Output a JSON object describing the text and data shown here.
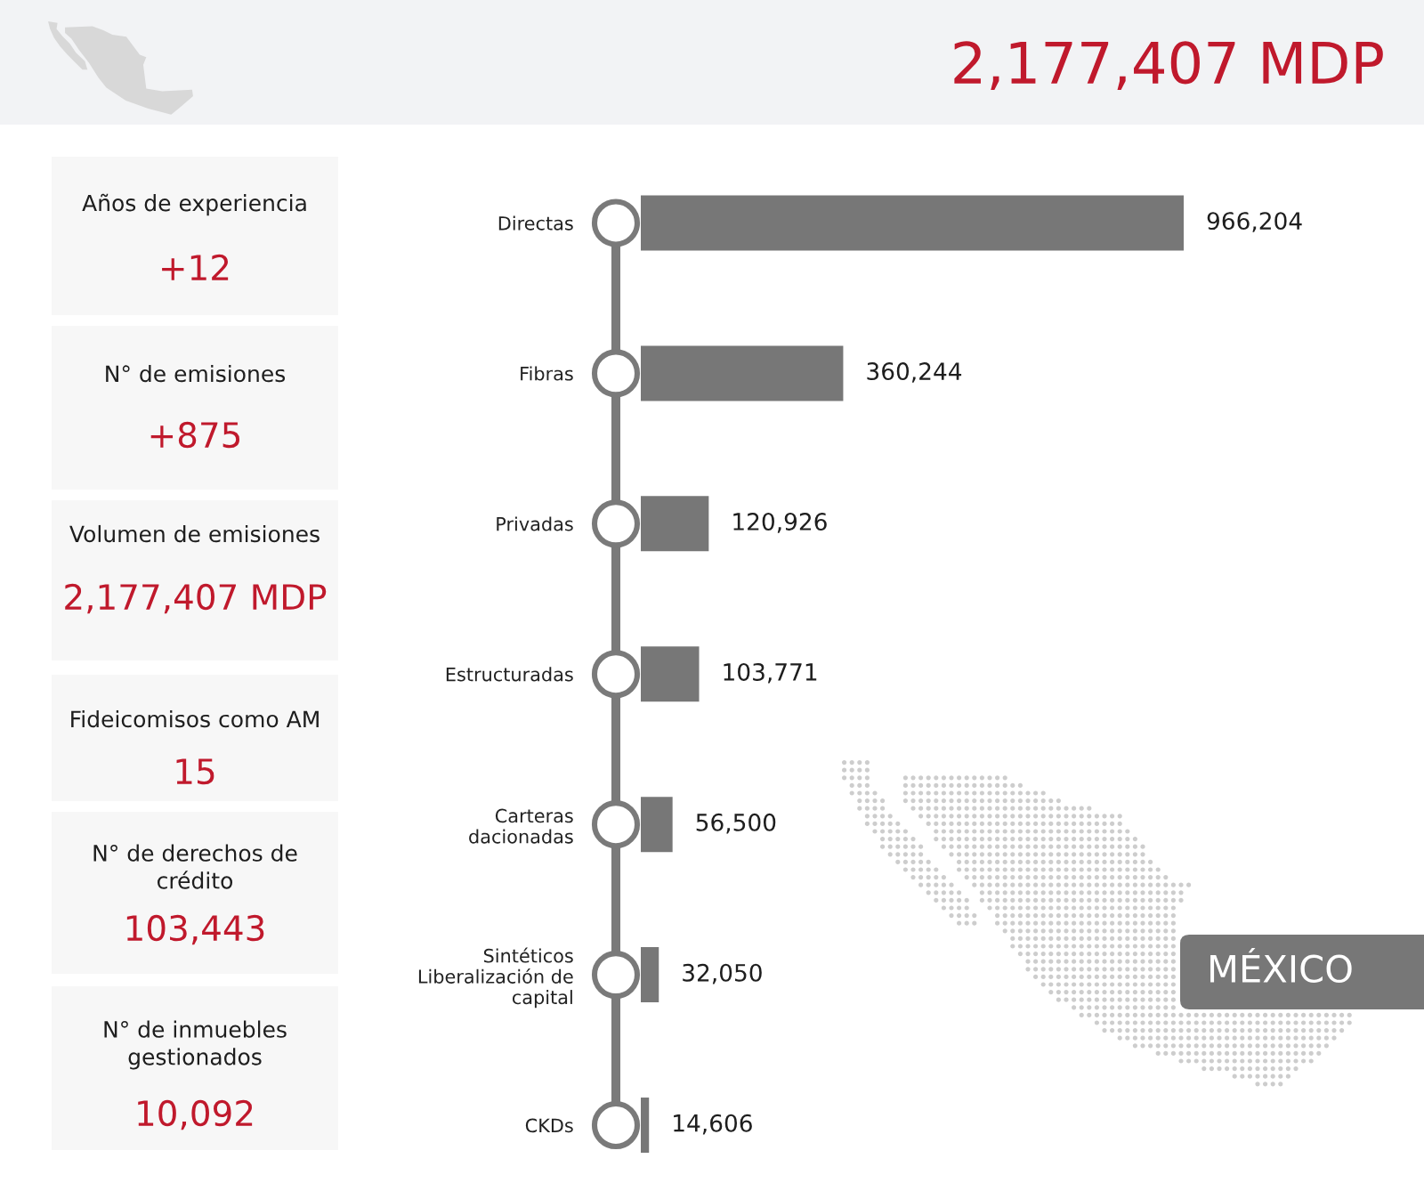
{
  "chart_data": [
    {
      "type": "other",
      "title": "2,177,407 MDP",
      "annotations": [
        "Años de experiencia",
        "+12",
        "N° de emisiones",
        "+875",
        "Volumen de emisiones",
        "2,177,407 MDP",
        "Fideicomisos como AM",
        "15",
        "N° de derechos de\ncrédito",
        "103,443",
        "N° de inmuebles\ngestionados",
        "10,092"
      ]
    },
    {
      "type": "bar",
      "orientation": "horizontal",
      "categories": [
        "Directas",
        "Fibras",
        "Privadas",
        "Estructuradas",
        "Carteras\ndacionadas",
        "Sintéticos\nLiberalización de\ncapital",
        "CKDs"
      ],
      "values": [
        966204,
        360244,
        120926,
        103771,
        56500,
        32050,
        14606
      ],
      "value_labels": [
        "966,204",
        "360,244",
        "120,926",
        "103,771",
        "56,500",
        "32,050",
        "14,606"
      ],
      "color": "#777777",
      "annotations": [
        "MÉXICO"
      ]
    }
  ]
}
